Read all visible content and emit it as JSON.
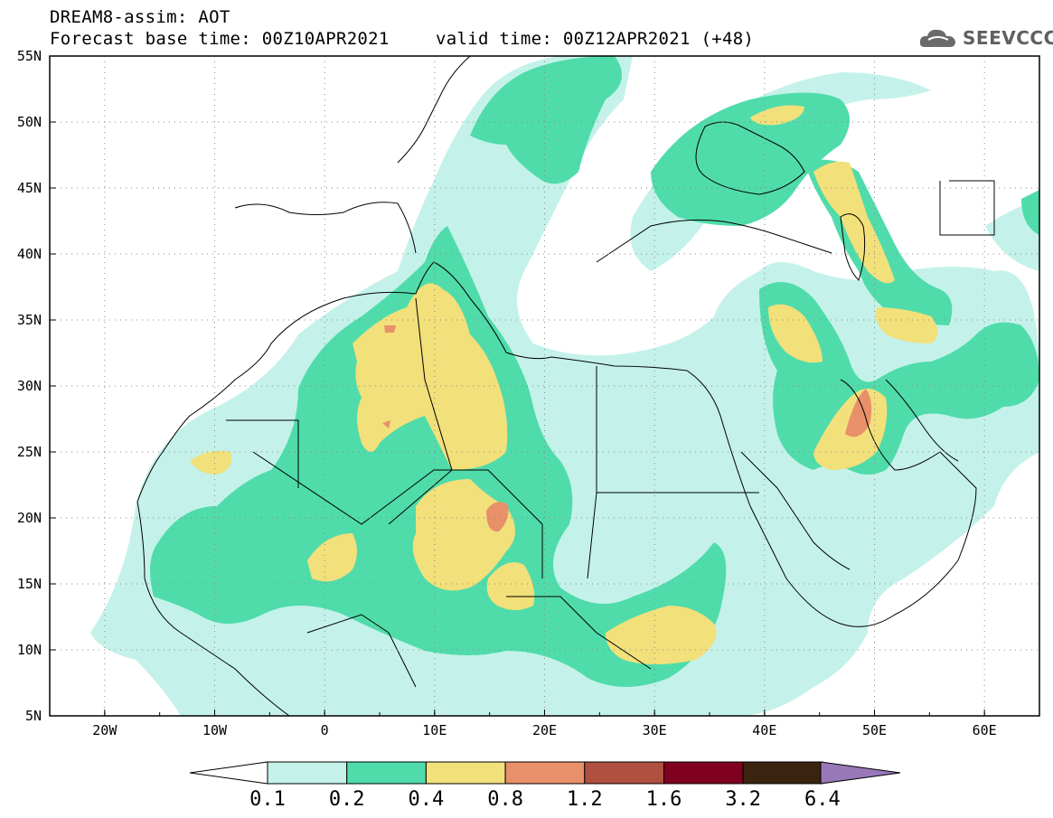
{
  "header": {
    "title": "DREAM8-assim: AOT",
    "base_time": "Forecast base time: 00Z10APR2021",
    "valid_time": "valid time: 00Z12APR2021 (+48)"
  },
  "logo": {
    "text": "SEEVCCC",
    "icon": "cloud-logo-icon"
  },
  "map": {
    "lat_labels": [
      "55N",
      "50N",
      "45N",
      "40N",
      "35N",
      "30N",
      "25N",
      "20N",
      "15N",
      "10N",
      "5N"
    ],
    "lon_labels": [
      "20W",
      "10W",
      "0",
      "10E",
      "20E",
      "30E",
      "40E",
      "50E",
      "60E"
    ],
    "lat_range": [
      5,
      55
    ],
    "lon_range": [
      -25,
      65
    ],
    "grid": "dotted"
  },
  "colorbar": {
    "labels": [
      "0.1",
      "0.2",
      "0.4",
      "0.8",
      "1.2",
      "1.6",
      "3.2",
      "6.4"
    ],
    "colors": [
      "#c4f2ea",
      "#4fdcaa",
      "#f2e07a",
      "#e8906a",
      "#b05040",
      "#800020",
      "#3a2410",
      "#9878b8"
    ],
    "under_color": "#ffffff"
  },
  "colors": {
    "level1": "#c4f2ea",
    "level2": "#4fdcaa",
    "level3": "#f2e07a",
    "level4": "#e8906a"
  }
}
